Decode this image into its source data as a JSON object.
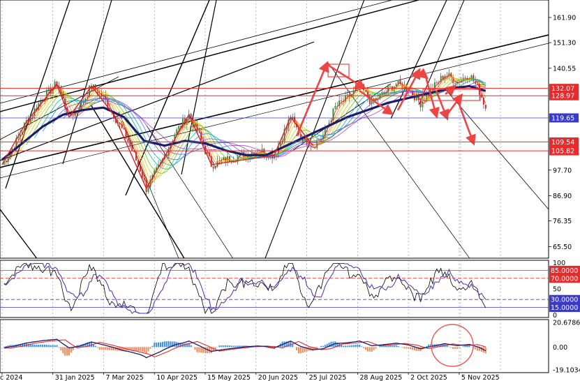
{
  "chart_data": {
    "type": "line",
    "instrument_panel": "price-candlestick-with-ribbon",
    "price_axis": {
      "ticks": [
        "161.90",
        "151.30",
        "140.55",
        "97.70",
        "86.90",
        "76.35",
        "65.50"
      ],
      "ylim": [
        58,
        170
      ]
    },
    "horizontal_levels": [
      {
        "label": "132.07",
        "value": 132.07,
        "color": "#e52b2b"
      },
      {
        "label": "128.97",
        "value": 128.97,
        "color": "#e52b2b"
      },
      {
        "label": "119.65",
        "value": 119.65,
        "color": "#3a3ac8"
      },
      {
        "label": "109.54",
        "value": 109.54,
        "color": "#e52b2b"
      },
      {
        "label": "105.82",
        "value": 105.82,
        "color": "#e52b2b"
      }
    ],
    "x_axis": {
      "tick_labels": [
        {
          "label": "c 2024",
          "index": 0
        },
        {
          "label": "31 Jan 2025",
          "index": 25
        },
        {
          "label": "7 Mar 2025",
          "index": 50
        },
        {
          "label": "10 Apr 2025",
          "index": 75
        },
        {
          "label": "15 May 2025",
          "index": 100
        },
        {
          "label": "20 Jun 2025",
          "index": 125
        },
        {
          "label": "25 Jul 2025",
          "index": 150
        },
        {
          "label": "28 Aug 2025",
          "index": 175
        },
        {
          "label": "2 Oct 2025",
          "index": 200
        },
        {
          "label": "5 Nov 2025",
          "index": 225
        }
      ],
      "bars_visible": 270
    },
    "price_anchors": [
      [
        0,
        100
      ],
      [
        6,
        108
      ],
      [
        12,
        118
      ],
      [
        20,
        128
      ],
      [
        27,
        134
      ],
      [
        33,
        120
      ],
      [
        38,
        124
      ],
      [
        44,
        133
      ],
      [
        50,
        128
      ],
      [
        55,
        121
      ],
      [
        62,
        110
      ],
      [
        68,
        98
      ],
      [
        71,
        90
      ],
      [
        78,
        100
      ],
      [
        85,
        113
      ],
      [
        92,
        121
      ],
      [
        97,
        112
      ],
      [
        103,
        100
      ],
      [
        110,
        102
      ],
      [
        118,
        104
      ],
      [
        126,
        106
      ],
      [
        134,
        104
      ],
      [
        142,
        120
      ],
      [
        147,
        112
      ],
      [
        153,
        108
      ],
      [
        158,
        112
      ],
      [
        164,
        124
      ],
      [
        170,
        128
      ],
      [
        176,
        133
      ],
      [
        182,
        126
      ],
      [
        188,
        130
      ],
      [
        194,
        134
      ],
      [
        200,
        132
      ],
      [
        206,
        126
      ],
      [
        212,
        132
      ],
      [
        218,
        138
      ],
      [
        224,
        135
      ],
      [
        230,
        138
      ],
      [
        235,
        131
      ],
      [
        238,
        124
      ]
    ],
    "slow_ma_anchors": [
      [
        0,
        102
      ],
      [
        20,
        116
      ],
      [
        30,
        121
      ],
      [
        40,
        123
      ],
      [
        50,
        124
      ],
      [
        60,
        120
      ],
      [
        70,
        110
      ],
      [
        80,
        108
      ],
      [
        90,
        110
      ],
      [
        100,
        109
      ],
      [
        110,
        106
      ],
      [
        120,
        104
      ],
      [
        130,
        104
      ],
      [
        140,
        108
      ],
      [
        150,
        112
      ],
      [
        160,
        116
      ],
      [
        170,
        120
      ],
      [
        180,
        123
      ],
      [
        190,
        126
      ],
      [
        200,
        128
      ],
      [
        210,
        130
      ],
      [
        220,
        132
      ],
      [
        230,
        133
      ],
      [
        238,
        131
      ]
    ],
    "oscillator_1": {
      "ticks": [
        "100",
        "50",
        "0"
      ],
      "levels": [
        {
          "label": "85.0000",
          "value": 85,
          "color": "#e52b2b"
        },
        {
          "label": "70.0000",
          "value": 70,
          "color": "#e52b2b"
        },
        {
          "label": "30.0000",
          "value": 30,
          "color": "#3a3ac8"
        },
        {
          "label": "15.0000",
          "value": 15,
          "color": "#3a3ac8"
        }
      ],
      "ylim": [
        0,
        100
      ]
    },
    "oscillator_2": {
      "ticks": [
        "20.6786",
        "0.00",
        "-19.1034"
      ],
      "ylim": [
        -19.1034,
        20.6786
      ]
    },
    "colors": {
      "red": "#e52b2b",
      "blue": "#3a3ac8",
      "navy": "#1c1c6b",
      "hist_up": "#3d8fe0",
      "hist_down": "#f08a5d"
    }
  }
}
